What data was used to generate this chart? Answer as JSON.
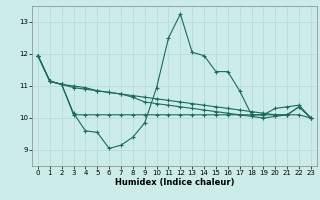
{
  "xlabel": "Humidex (Indice chaleur)",
  "xlim": [
    -0.5,
    23.5
  ],
  "ylim": [
    8.5,
    13.5
  ],
  "yticks": [
    9,
    10,
    11,
    12,
    13
  ],
  "xticks": [
    0,
    1,
    2,
    3,
    4,
    5,
    6,
    7,
    8,
    9,
    10,
    11,
    12,
    13,
    14,
    15,
    16,
    17,
    18,
    19,
    20,
    21,
    22,
    23
  ],
  "bg_color": "#ccecea",
  "grid_color": "#bbdddb",
  "line_color": "#1a6b5a",
  "line1_y": [
    11.95,
    11.15,
    11.05,
    10.15,
    9.6,
    9.55,
    9.05,
    9.15,
    9.4,
    9.85,
    10.95,
    12.5,
    13.25,
    12.05,
    11.95,
    11.45,
    11.45,
    10.85,
    10.1,
    10.1,
    10.3,
    10.35,
    10.4,
    10.0
  ],
  "line2_y": [
    11.95,
    11.15,
    11.05,
    10.1,
    10.1,
    10.1,
    10.1,
    10.1,
    10.1,
    10.1,
    10.1,
    10.1,
    10.1,
    10.1,
    10.1,
    10.1,
    10.1,
    10.1,
    10.1,
    10.1,
    10.1,
    10.1,
    10.1,
    10.0
  ],
  "line3_y": [
    11.95,
    11.15,
    11.05,
    11.0,
    10.95,
    10.85,
    10.8,
    10.75,
    10.7,
    10.65,
    10.6,
    10.55,
    10.5,
    10.45,
    10.4,
    10.35,
    10.3,
    10.25,
    10.2,
    10.15,
    10.1,
    10.1,
    10.35,
    10.0
  ],
  "line4_y": [
    11.95,
    11.15,
    11.05,
    10.95,
    10.9,
    10.85,
    10.8,
    10.75,
    10.65,
    10.5,
    10.45,
    10.4,
    10.35,
    10.3,
    10.25,
    10.2,
    10.15,
    10.1,
    10.05,
    10.0,
    10.05,
    10.1,
    10.35,
    10.0
  ]
}
